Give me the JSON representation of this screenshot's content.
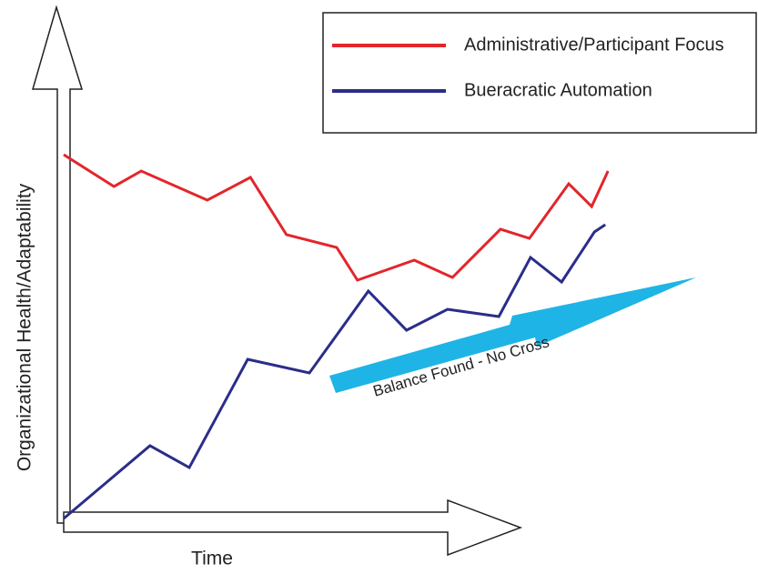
{
  "chart_data": {
    "type": "line",
    "xlabel": "Time",
    "ylabel": "Organizational Health/Adaptability",
    "annotation": "Balance Found - No Cross",
    "xlim": [
      0,
      100
    ],
    "ylim": [
      0,
      100
    ],
    "legend": "top-right",
    "series": [
      {
        "name": "Administrative/Participant Focus",
        "color": "#e2262b",
        "x": [
          0,
          9.2,
          14.2,
          26.3,
          34.2,
          40.8,
          50,
          53.8,
          64.2,
          71.2,
          80,
          85.3,
          92.5,
          96.7,
          99.7
        ],
        "values": [
          80,
          73,
          76.4,
          70,
          75,
          62.4,
          59.6,
          52.4,
          56.8,
          53,
          63.6,
          61.6,
          73.6,
          68.6,
          76.4
        ]
      },
      {
        "name": "Bueracratic Automation",
        "color": "#2b2d8a",
        "x": [
          0,
          15.8,
          23,
          33.7,
          45,
          55.8,
          62.8,
          70.3,
          79.7,
          85.5,
          91.2,
          97.2,
          99.2
        ],
        "values": [
          0,
          16,
          11.2,
          35,
          32,
          50,
          41.4,
          46,
          44.4,
          57.4,
          52,
          63,
          64.6
        ]
      }
    ]
  }
}
